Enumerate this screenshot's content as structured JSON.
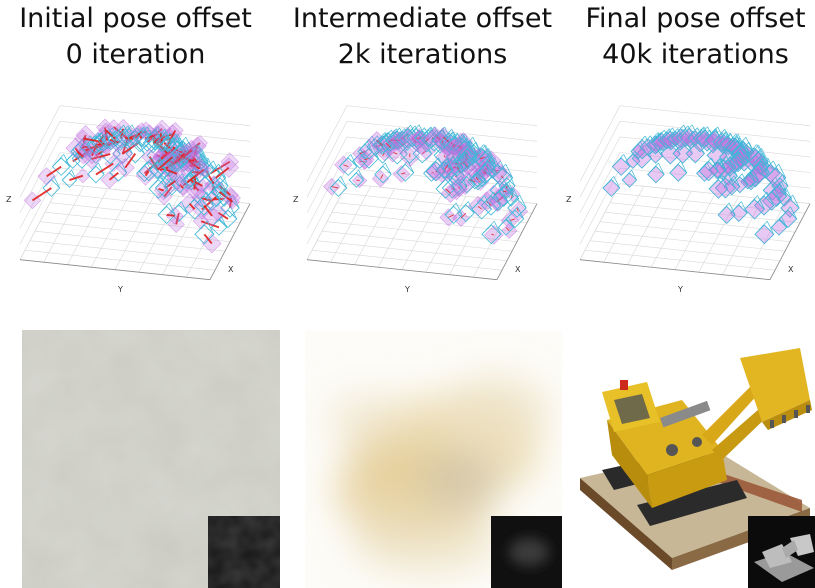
{
  "panels": [
    {
      "title": "Initial pose offset",
      "subtitle": "0 iteration",
      "axis_x": "X",
      "axis_y": "Y",
      "axis_z": "Z"
    },
    {
      "title": "Intermediate offset",
      "subtitle": "2k iterations",
      "axis_x": "X",
      "axis_y": "Y",
      "axis_z": "Z"
    },
    {
      "title": "Final pose offset",
      "subtitle": "40k iterations",
      "axis_x": "X",
      "axis_y": "Y",
      "axis_z": "Z"
    }
  ],
  "colors": {
    "gt_camera": "#3fb8d8",
    "est_camera": "#c070e0",
    "offset_line": "#e02020",
    "grid": "#d8d8d8"
  }
}
